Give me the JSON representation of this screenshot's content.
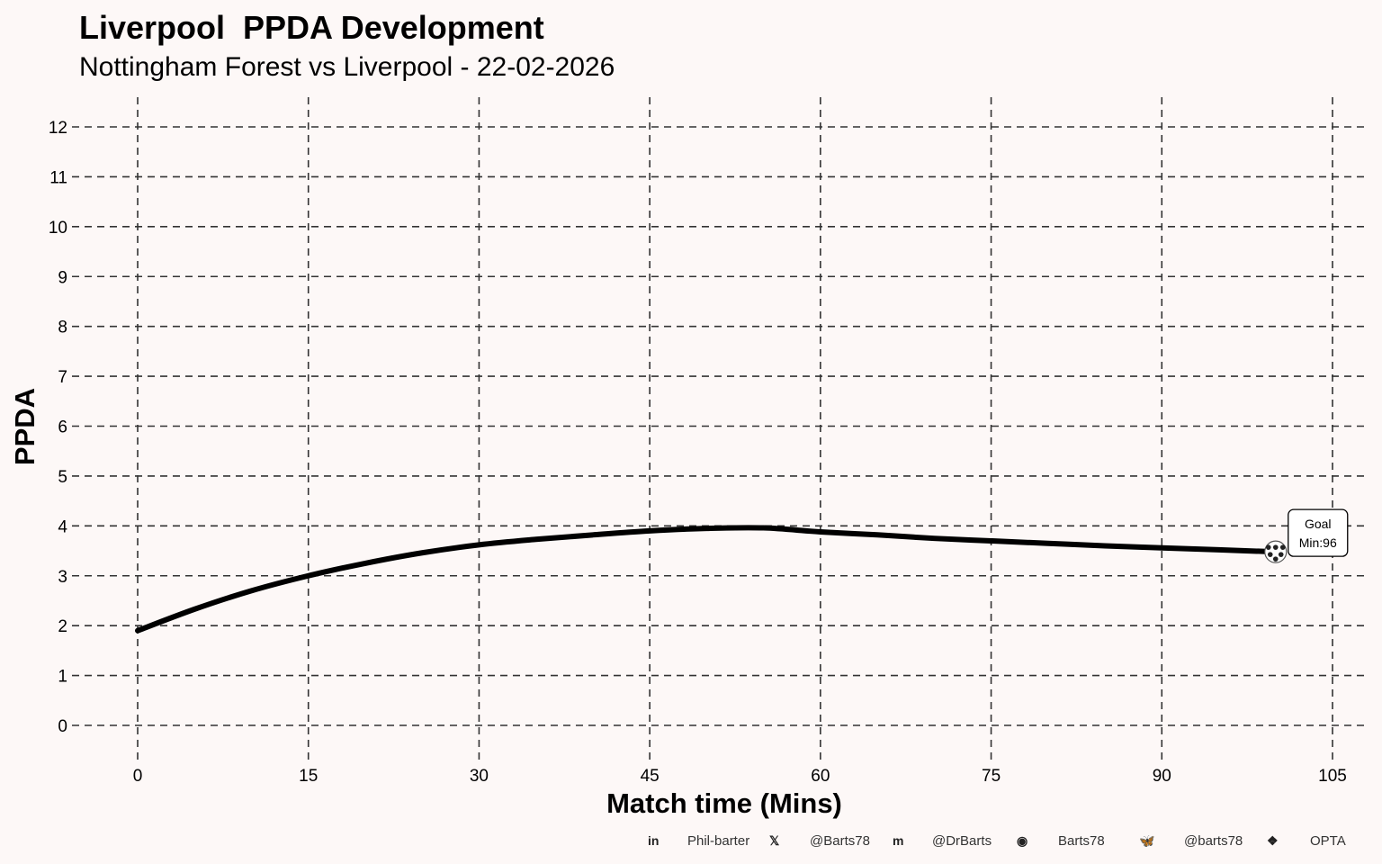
{
  "chart_data": {
    "type": "line",
    "title": "Liverpool  PPDA Development",
    "subtitle": "Nottingham Forest vs Liverpool - 22-02-2026",
    "xlabel": "Match time (Mins)",
    "ylabel": "PPDA",
    "xlim": [
      0,
      105
    ],
    "ylim": [
      0,
      12
    ],
    "xticks": [
      0,
      15,
      30,
      45,
      60,
      75,
      90,
      105
    ],
    "yticks": [
      0,
      1,
      2,
      3,
      4,
      5,
      6,
      7,
      8,
      9,
      10,
      11,
      12
    ],
    "grid": true,
    "series": [
      {
        "name": "Liverpool PPDA",
        "color": "#000000",
        "x": [
          0,
          5,
          10,
          15,
          20,
          25,
          30,
          35,
          40,
          45,
          50,
          55,
          60,
          65,
          70,
          75,
          80,
          85,
          90,
          95,
          100
        ],
        "y": [
          1.9,
          2.33,
          2.7,
          3.0,
          3.25,
          3.46,
          3.62,
          3.73,
          3.82,
          3.9,
          3.95,
          3.96,
          3.88,
          3.82,
          3.75,
          3.7,
          3.65,
          3.6,
          3.56,
          3.52,
          3.48
        ]
      }
    ],
    "annotations": [
      {
        "type": "goal",
        "x": 100,
        "y": 3.48,
        "label_line1": "Goal",
        "label_line2": "Min:96"
      }
    ]
  },
  "footer": {
    "items": [
      {
        "icon": "linkedin-icon",
        "glyph": "in",
        "text": "Phil-barter"
      },
      {
        "icon": "x-icon",
        "glyph": "𝕏",
        "text": "@Barts78"
      },
      {
        "icon": "mastodon-icon",
        "glyph": "m",
        "text": "@DrBarts"
      },
      {
        "icon": "github-icon",
        "glyph": "◉",
        "text": "Barts78"
      },
      {
        "icon": "bluesky-icon",
        "glyph": "🦋",
        "text": "@barts78"
      },
      {
        "icon": "dropbox-icon",
        "glyph": "❖",
        "text": "OPTA"
      }
    ]
  }
}
